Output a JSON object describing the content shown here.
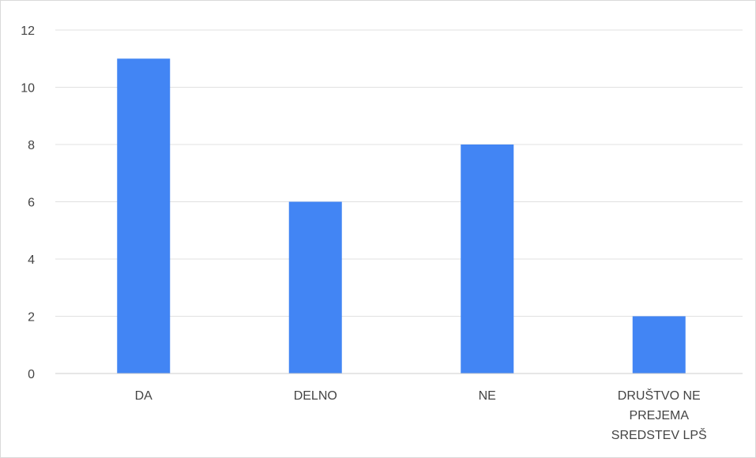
{
  "chart_data": {
    "type": "bar",
    "title": "",
    "xlabel": "",
    "ylabel": "",
    "categories": [
      [
        "DA"
      ],
      [
        "DELNO"
      ],
      [
        "NE"
      ],
      [
        "DRUŠTVO NE",
        "PREJEMA",
        "SREDSTEV LPŠ"
      ]
    ],
    "values": [
      11,
      6,
      8,
      2
    ],
    "ylim": [
      0,
      12
    ],
    "yticks": [
      "0",
      "2",
      "4",
      "6",
      "8",
      "10",
      "12"
    ],
    "grid": true,
    "legend": "none",
    "bar_color": "#4285f4",
    "grid_color": "#e0e0e0",
    "axis_color": "#cccccc"
  }
}
